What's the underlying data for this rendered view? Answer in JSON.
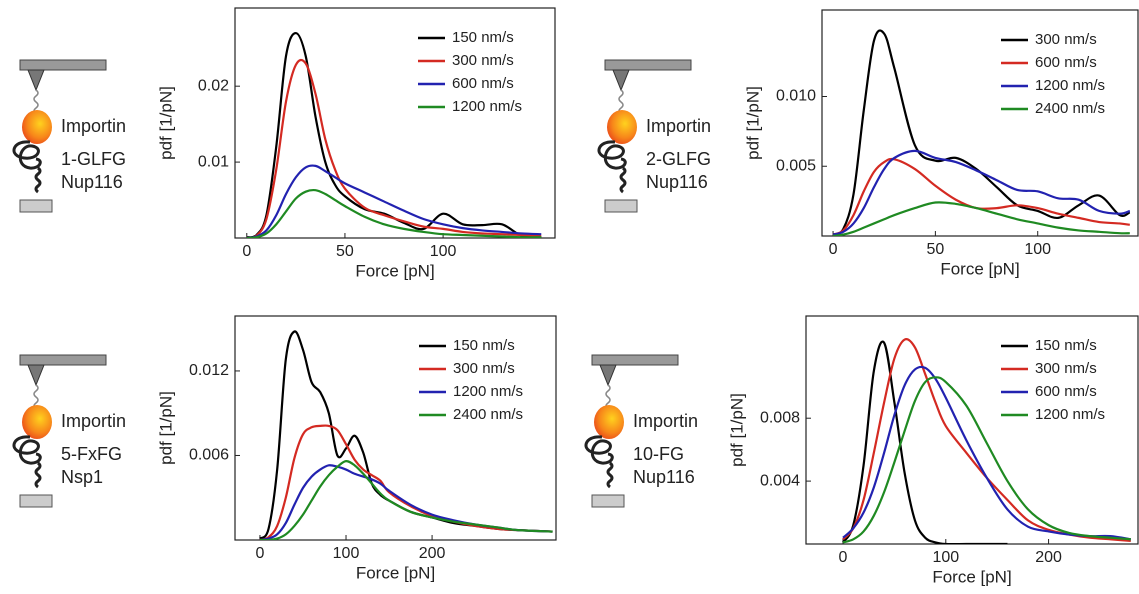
{
  "icons": [
    {
      "protein": "Importin",
      "construct": [
        "1-GLFG",
        "Nup116"
      ],
      "color": "#6a1f6e"
    },
    {
      "protein": "Importin",
      "construct": [
        "2-GLFG",
        "Nup116"
      ],
      "color": "#2a73c4"
    },
    {
      "protein": "Importin",
      "construct": [
        "5-FxFG",
        "Nsp1"
      ],
      "color": "#c82ac8"
    },
    {
      "protein": "Importin",
      "construct": [
        "10-FG",
        "Nup116"
      ],
      "color": "#2cbfe0"
    }
  ],
  "protein_color": "#d98a20",
  "chart_data": [
    {
      "type": "line",
      "x_label": "Force [pN]",
      "y_label": "pdf [1/pN]",
      "legend": "upper right",
      "xlim": [
        -6,
        157
      ],
      "ylim": [
        0,
        0.0303
      ],
      "xticks": [
        0,
        50,
        100
      ],
      "yticks": [
        0.01,
        0.02
      ],
      "x": [
        0,
        5,
        10,
        15,
        20,
        25,
        30,
        35,
        40,
        45,
        50,
        60,
        70,
        80,
        90,
        100,
        110,
        120,
        130,
        140,
        150
      ],
      "series": [
        {
          "name": "150 nm/s",
          "color": "#000000",
          "values": [
            0.0001,
            0.0004,
            0.003,
            0.012,
            0.024,
            0.027,
            0.024,
            0.016,
            0.01,
            0.007,
            0.0055,
            0.0038,
            0.0032,
            0.002,
            0.0012,
            0.0032,
            0.0018,
            0.0017,
            0.0018,
            0.0003,
            0.0001
          ]
        },
        {
          "name": "300 nm/s",
          "color": "#d42a22",
          "values": [
            0,
            0.0003,
            0.0025,
            0.009,
            0.018,
            0.0228,
            0.023,
            0.019,
            0.013,
            0.009,
            0.0065,
            0.004,
            0.003,
            0.0022,
            0.0015,
            0.0012,
            0.0008,
            0.0006,
            0.0005,
            0.0004,
            0.0003
          ]
        },
        {
          "name": "600 nm/s",
          "color": "#2222b0",
          "values": [
            0,
            0.0002,
            0.001,
            0.003,
            0.0058,
            0.008,
            0.0093,
            0.0095,
            0.0088,
            0.008,
            0.0072,
            0.006,
            0.0048,
            0.0036,
            0.0025,
            0.0018,
            0.0013,
            0.001,
            0.0008,
            0.0006,
            0.0005
          ]
        },
        {
          "name": "1200 nm/s",
          "color": "#1f8a22",
          "values": [
            0,
            0.0001,
            0.0006,
            0.0018,
            0.0035,
            0.0052,
            0.0061,
            0.0063,
            0.0058,
            0.005,
            0.0042,
            0.0028,
            0.0018,
            0.0012,
            0.0008,
            0.0005,
            0.0004,
            0.0003,
            0.0002,
            0.0001,
            0.0001
          ]
        }
      ]
    },
    {
      "type": "line",
      "x_label": "Force [pN]",
      "y_label": "pdf [1/pN]",
      "legend": "upper right",
      "xlim": [
        -5.4,
        149
      ],
      "ylim": [
        0,
        0.0162
      ],
      "xticks": [
        0,
        50,
        100
      ],
      "yticks": [
        0.005,
        {
          "value": 0.01,
          "label": "0.010"
        }
      ],
      "x": [
        0,
        5,
        10,
        15,
        20,
        25,
        30,
        40,
        50,
        60,
        70,
        80,
        90,
        100,
        110,
        120,
        130,
        140,
        145
      ],
      "series": [
        {
          "name": "300 nm/s",
          "color": "#000000",
          "values": [
            0.0001,
            0.0005,
            0.003,
            0.009,
            0.014,
            0.0145,
            0.012,
            0.0065,
            0.0054,
            0.0056,
            0.0048,
            0.0035,
            0.0022,
            0.0018,
            0.0013,
            0.0022,
            0.0029,
            0.0015,
            0.0017
          ]
        },
        {
          "name": "600 nm/s",
          "color": "#d42a22",
          "values": [
            0.0001,
            0.0004,
            0.0015,
            0.0032,
            0.0046,
            0.0053,
            0.0055,
            0.0048,
            0.0036,
            0.0026,
            0.002,
            0.002,
            0.0022,
            0.002,
            0.0016,
            0.0013,
            0.001,
            0.0009,
            0.0008
          ]
        },
        {
          "name": "1200 nm/s",
          "color": "#2222b0",
          "values": [
            0.0001,
            0.0003,
            0.0009,
            0.002,
            0.0035,
            0.0048,
            0.0056,
            0.0061,
            0.0056,
            0.0053,
            0.0047,
            0.004,
            0.0033,
            0.0032,
            0.0027,
            0.0026,
            0.0018,
            0.0016,
            0.0018
          ]
        },
        {
          "name": "2400 nm/s",
          "color": "#1f8a22",
          "values": [
            0,
            0.0001,
            0.0003,
            0.0006,
            0.0009,
            0.0012,
            0.0015,
            0.002,
            0.0024,
            0.0023,
            0.002,
            0.0016,
            0.0012,
            0.0009,
            0.0006,
            0.0004,
            0.0003,
            0.0002,
            0.0002
          ]
        }
      ]
    },
    {
      "type": "line",
      "x_label": "Force [pN]",
      "y_label": "pdf [1/pN]",
      "legend": "upper right",
      "xlim": [
        -29,
        344
      ],
      "ylim": [
        0,
        0.0159
      ],
      "xticks": [
        0,
        100,
        200
      ],
      "yticks": [
        0.006,
        0.012
      ],
      "x": [
        0,
        10,
        20,
        30,
        40,
        50,
        60,
        70,
        80,
        90,
        100,
        110,
        120,
        130,
        140,
        150,
        175,
        200,
        225,
        250,
        275,
        300,
        340
      ],
      "series": [
        {
          "name": "150 nm/s",
          "color": "#000000",
          "values": [
            0.0001,
            0.0008,
            0.005,
            0.0128,
            0.0148,
            0.0135,
            0.0112,
            0.0105,
            0.009,
            0.006,
            0.0065,
            0.0074,
            0.0062,
            0.004,
            0.0032,
            0.0028,
            0.002,
            0.0016,
            0.0012,
            0.001,
            0.0008,
            0.0007,
            0.0006
          ]
        },
        {
          "name": "300 nm/s",
          "color": "#d42a22",
          "values": [
            0,
            0.0002,
            0.001,
            0.003,
            0.0058,
            0.0075,
            0.008,
            0.0081,
            0.0081,
            0.0078,
            0.0068,
            0.0057,
            0.005,
            0.0046,
            0.0042,
            0.0034,
            0.0024,
            0.0017,
            0.0013,
            0.001,
            0.0008,
            0.0007,
            0.0006
          ]
        },
        {
          "name": "1200 nm/s",
          "color": "#2222b0",
          "values": [
            0,
            0.0001,
            0.0004,
            0.0012,
            0.0025,
            0.0037,
            0.0045,
            0.005,
            0.0053,
            0.0052,
            0.005,
            0.0047,
            0.0045,
            0.0043,
            0.004,
            0.0035,
            0.0025,
            0.0018,
            0.0014,
            0.0011,
            0.0009,
            0.0007,
            0.0006
          ]
        },
        {
          "name": "2400 nm/s",
          "color": "#1f8a22",
          "values": [
            0,
            0,
            0.0001,
            0.0004,
            0.001,
            0.0018,
            0.0028,
            0.0038,
            0.0046,
            0.0052,
            0.0056,
            0.0053,
            0.0047,
            0.004,
            0.0033,
            0.0028,
            0.002,
            0.0016,
            0.0013,
            0.0011,
            0.0009,
            0.0007,
            0.0006
          ]
        }
      ]
    },
    {
      "type": "line",
      "x_label": "Force [pN]",
      "y_label": "pdf [1/pN]",
      "legend": "upper right",
      "xlim": [
        -36,
        287
      ],
      "ylim": [
        0,
        0.0145
      ],
      "xticks": [
        0,
        100,
        200
      ],
      "yticks": [
        0.004,
        0.008
      ],
      "x": [
        0,
        10,
        20,
        30,
        40,
        50,
        60,
        70,
        80,
        90,
        100,
        120,
        140,
        160,
        180,
        200,
        220,
        240,
        260,
        280
      ],
      "series": [
        {
          "name": "150 nm/s",
          "color": "#000000",
          "values": [
            0.0001,
            0.0012,
            0.005,
            0.011,
            0.0128,
            0.009,
            0.0045,
            0.0015,
            0.0004,
            0.0001,
            0,
            0,
            0,
            0,
            null,
            null,
            null,
            null,
            null,
            null
          ]
        },
        {
          "name": "300 nm/s",
          "color": "#d42a22",
          "values": [
            0.0003,
            0.001,
            0.0028,
            0.0058,
            0.009,
            0.0118,
            0.013,
            0.0125,
            0.0108,
            0.009,
            0.0075,
            0.0058,
            0.0042,
            0.0028,
            0.0015,
            0.0009,
            0.0006,
            0.0004,
            0.0003,
            0.0002
          ]
        },
        {
          "name": "600 nm/s",
          "color": "#2222b0",
          "values": [
            0.0004,
            0.001,
            0.002,
            0.0036,
            0.0058,
            0.0082,
            0.0101,
            0.0111,
            0.0112,
            0.0105,
            0.0093,
            0.0066,
            0.0042,
            0.0022,
            0.0011,
            0.0008,
            0.0006,
            0.0005,
            0.0005,
            0.0003
          ]
        },
        {
          "name": "1200 nm/s",
          "color": "#1f8a22",
          "values": [
            0.0001,
            0.0003,
            0.0008,
            0.0018,
            0.0033,
            0.0052,
            0.0072,
            0.0091,
            0.0103,
            0.0106,
            0.0103,
            0.0088,
            0.0064,
            0.004,
            0.0022,
            0.0012,
            0.0007,
            0.0005,
            0.0004,
            0.0003
          ]
        }
      ]
    }
  ]
}
